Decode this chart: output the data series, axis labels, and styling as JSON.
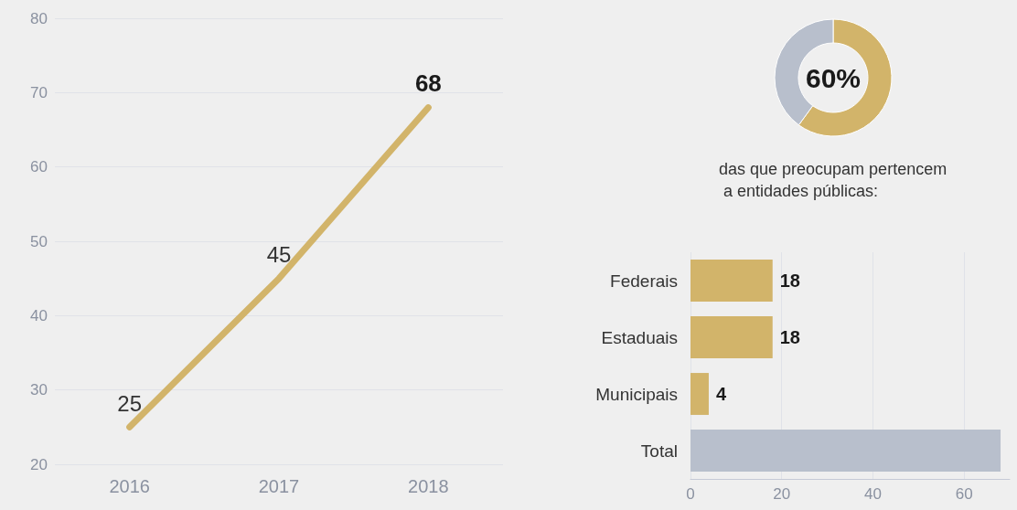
{
  "chart_data": [
    {
      "type": "line",
      "categories": [
        "2016",
        "2017",
        "2018"
      ],
      "values": [
        25,
        45,
        68
      ],
      "color": "#d2b46a",
      "ylim": [
        20,
        80
      ],
      "yticks": [
        20,
        30,
        40,
        50,
        60,
        70,
        80
      ],
      "grid": "y",
      "data_labels": true
    },
    {
      "type": "donut",
      "categories": [
        null,
        null
      ],
      "values": [
        60,
        40
      ],
      "colors": [
        "#d2b46a",
        "#b8bfcc"
      ],
      "value_labels": [
        "60%",
        null
      ],
      "annotations": [
        "das que preocupam pertencem a entidades públicas:"
      ]
    },
    {
      "type": "bar",
      "orientation": "horizontal",
      "categories": [
        "Federais",
        "Estaduais",
        "Municipais",
        "Total"
      ],
      "values": [
        18,
        18,
        4,
        68
      ],
      "colors": [
        "#d2b46a",
        "#d2b46a",
        "#d2b46a",
        "#b8bfcc"
      ],
      "value_labels": [
        "18",
        "18",
        "4",
        null
      ],
      "xlim": [
        0,
        70
      ],
      "xticks": [
        0,
        20,
        40,
        60
      ],
      "grid": "x"
    }
  ]
}
